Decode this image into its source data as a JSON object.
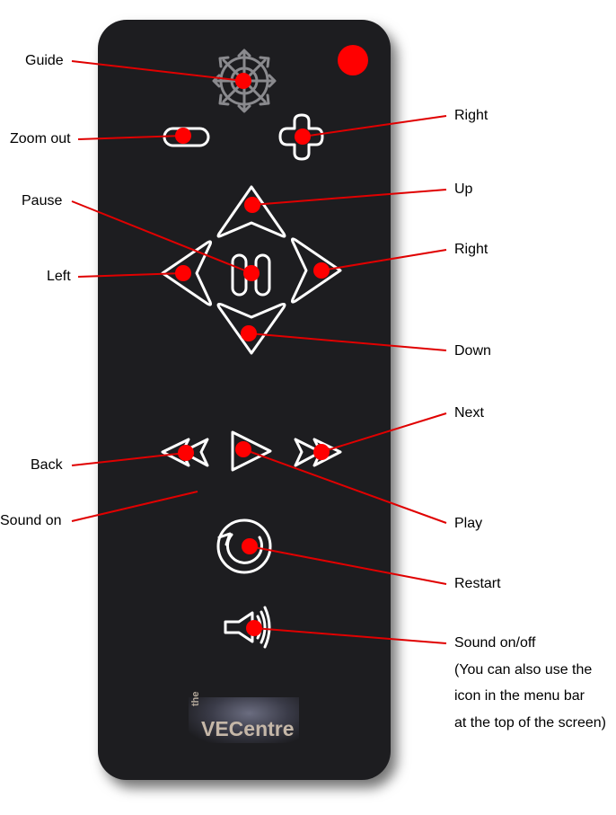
{
  "labels": {
    "guide": "Guide",
    "zoom_out": "Zoom out",
    "right_top": "Right",
    "pause": "Pause",
    "up": "Up",
    "right": "Right",
    "left": "Left",
    "down": "Down",
    "next": "Next",
    "back": "Back",
    "play": "Play",
    "sound_on": "Sound on",
    "restart": "Restart",
    "sound_onoff": "Sound on/off",
    "sound_note": [
      "(You can also use the",
      "icon in the menu bar",
      "at the top of the screen)"
    ]
  },
  "logo": {
    "small": "the",
    "main": "VECentre"
  },
  "colors": {
    "remote_body": "#1d1d20",
    "button_stroke": "#ffffff",
    "guide_icon": "#8a8a8e",
    "marker": "#ff0000",
    "leader_line": "#e00000"
  },
  "icons": {
    "guide": "compass-arrows-icon",
    "zoom_out": "minus-pill-icon",
    "zoom_in": "plus-icon",
    "up": "up-arrow-icon",
    "down": "down-arrow-icon",
    "left": "left-arrow-icon",
    "right": "right-arrow-icon",
    "pause": "pause-icon",
    "back": "rewind-icon",
    "play": "play-icon",
    "next": "fast-forward-icon",
    "restart": "restart-icon",
    "sound": "speaker-icon"
  }
}
